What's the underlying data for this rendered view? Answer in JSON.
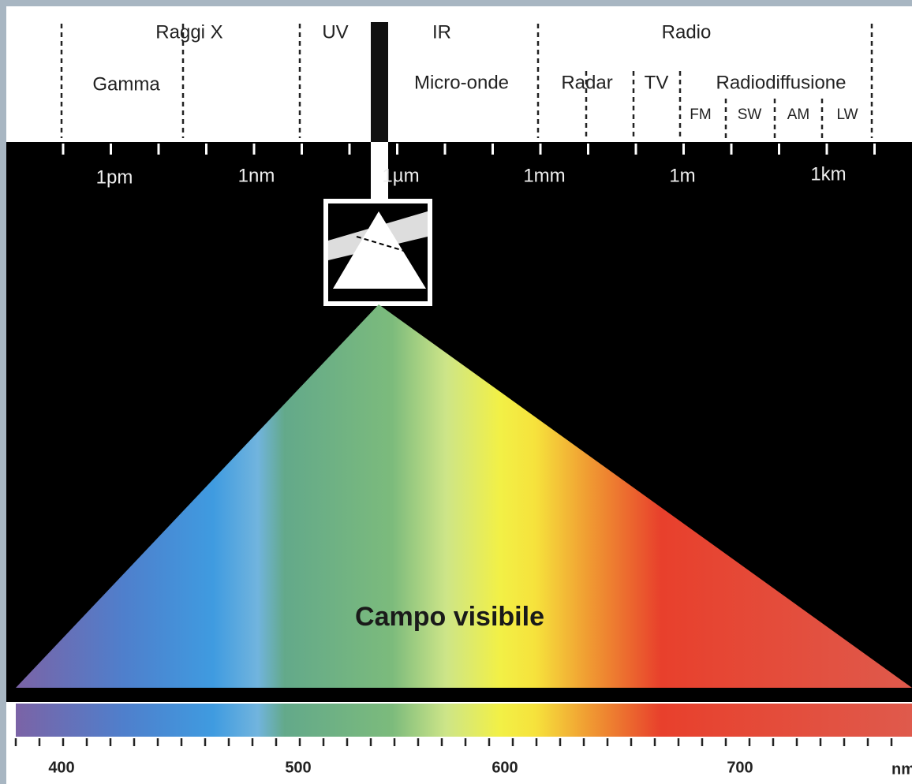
{
  "bands": {
    "x_rays": "Raggi X",
    "uv": "UV",
    "ir": "IR",
    "radio": "Radio",
    "gamma": "Gamma",
    "microwaves": "Micro-onde",
    "radar": "Radar",
    "tv": "TV",
    "broadcasting": "Radiodiffusione",
    "fm": "FM",
    "sw": "SW",
    "am": "AM",
    "lw": "LW"
  },
  "scale": [
    "1pm",
    "1nm",
    "1µm",
    "1mm",
    "1m",
    "1km"
  ],
  "visible_label": "Campo visibile",
  "wavelengths": [
    "400",
    "500",
    "600",
    "700"
  ],
  "unit": "nm"
}
